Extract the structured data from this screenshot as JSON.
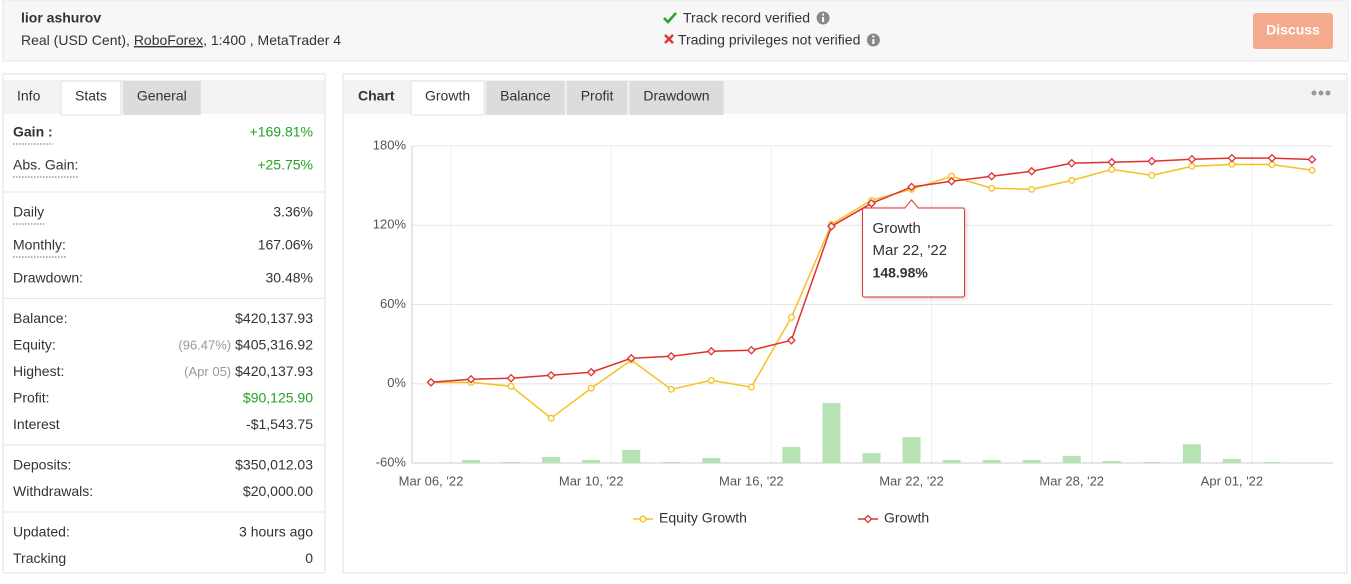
{
  "header": {
    "name": "lior ashurov",
    "account": {
      "prefix": "Real (USD Cent), ",
      "broker": "RoboForex",
      "suffix": ", 1:400 , MetaTrader 4"
    },
    "verification": [
      "Track record verified",
      "Trading privileges not verified"
    ],
    "button": "Discuss"
  },
  "left_panel": {
    "label": "Info",
    "tabs": [
      "Stats",
      "General"
    ],
    "active_tab": 0,
    "groups": [
      [
        {
          "label": "Gain :",
          "value": "+169.81%",
          "underline": true,
          "bold": true,
          "positive": true
        },
        {
          "label": "Abs. Gain:",
          "value": "+25.75%",
          "underline": true,
          "positive": true
        }
      ],
      [
        {
          "label": "Daily",
          "value": "3.36%",
          "underline": true
        },
        {
          "label": "Monthly:",
          "value": "167.06%",
          "underline": true
        },
        {
          "label": "Drawdown:",
          "value": "30.48%"
        }
      ],
      [
        {
          "label": "Balance:",
          "value": "$420,137.93"
        },
        {
          "label": "Equity:",
          "note": "(96.47%)",
          "value": "$405,316.92"
        },
        {
          "label": "Highest:",
          "note": "(Apr 05)",
          "value": "$420,137.93"
        },
        {
          "label": "Profit:",
          "value": "$90,125.90",
          "positive": true
        },
        {
          "label": "Interest",
          "value": "-$1,543.75"
        }
      ],
      [
        {
          "label": "Deposits:",
          "value": "$350,012.03"
        },
        {
          "label": "Withdrawals:",
          "value": "$20,000.00"
        }
      ],
      [
        {
          "label": "Updated:",
          "value": "3 hours ago"
        },
        {
          "label": "Tracking",
          "value": "0"
        }
      ]
    ]
  },
  "right_panel": {
    "label": "Chart",
    "tabs": [
      "Growth",
      "Balance",
      "Profit",
      "Drawdown"
    ],
    "active_tab": 0
  },
  "chart_data": {
    "type": "line",
    "categories": [
      "Mar 06, '22",
      null,
      null,
      null,
      "Mar 10, '22",
      null,
      null,
      null,
      "Mar 16, '22",
      null,
      null,
      null,
      "Mar 22, '22",
      null,
      null,
      null,
      "Mar 28, '22",
      null,
      null,
      null,
      "Apr 01, '22",
      null,
      null
    ],
    "series": [
      {
        "name": "Equity Growth",
        "color": "#f5c123",
        "marker": "circle",
        "values": [
          1,
          1,
          -1.9,
          -26.1,
          -3.4,
          17.8,
          -4.2,
          2.6,
          -2.6,
          50.3,
          120.7,
          138.9,
          147.2,
          157.1,
          148,
          147.2,
          154,
          162.3,
          157.8,
          164.6,
          166.1,
          166,
          161.6
        ]
      },
      {
        "name": "Growth",
        "color": "#e0322d",
        "marker": "diamond",
        "values": [
          1.1,
          3.4,
          4.2,
          6.4,
          8.7,
          19.3,
          20.8,
          24.6,
          25.4,
          32.9,
          119.2,
          136.6,
          148.98,
          153.3,
          157.1,
          160.9,
          167,
          167.7,
          168.5,
          170,
          170.8,
          170.8,
          169.81
        ]
      }
    ],
    "bars": {
      "color": "#b7e2b4",
      "values": [
        null,
        -57.7,
        -59.2,
        -55.4,
        -57.7,
        -50.1,
        -59.2,
        -56.2,
        -59.6,
        -47.9,
        -14.6,
        -52.5,
        -40.4,
        -57.7,
        -57.7,
        -57.7,
        -54.6,
        -58.5,
        -59.2,
        -45.8,
        -56.9,
        -59.2,
        null
      ]
    },
    "ylim": [
      -60,
      180
    ],
    "yticks": [
      {
        "value": -60,
        "label": "-60%"
      },
      {
        "value": 0,
        "label": "0%"
      },
      {
        "value": 60,
        "label": "60%"
      },
      {
        "value": 120,
        "label": "120%"
      },
      {
        "value": 180,
        "label": "180%"
      }
    ],
    "grid": true,
    "legend": "bottom",
    "tooltip": {
      "date": "Mar 22, '22",
      "value_label": "148.98%"
    }
  }
}
